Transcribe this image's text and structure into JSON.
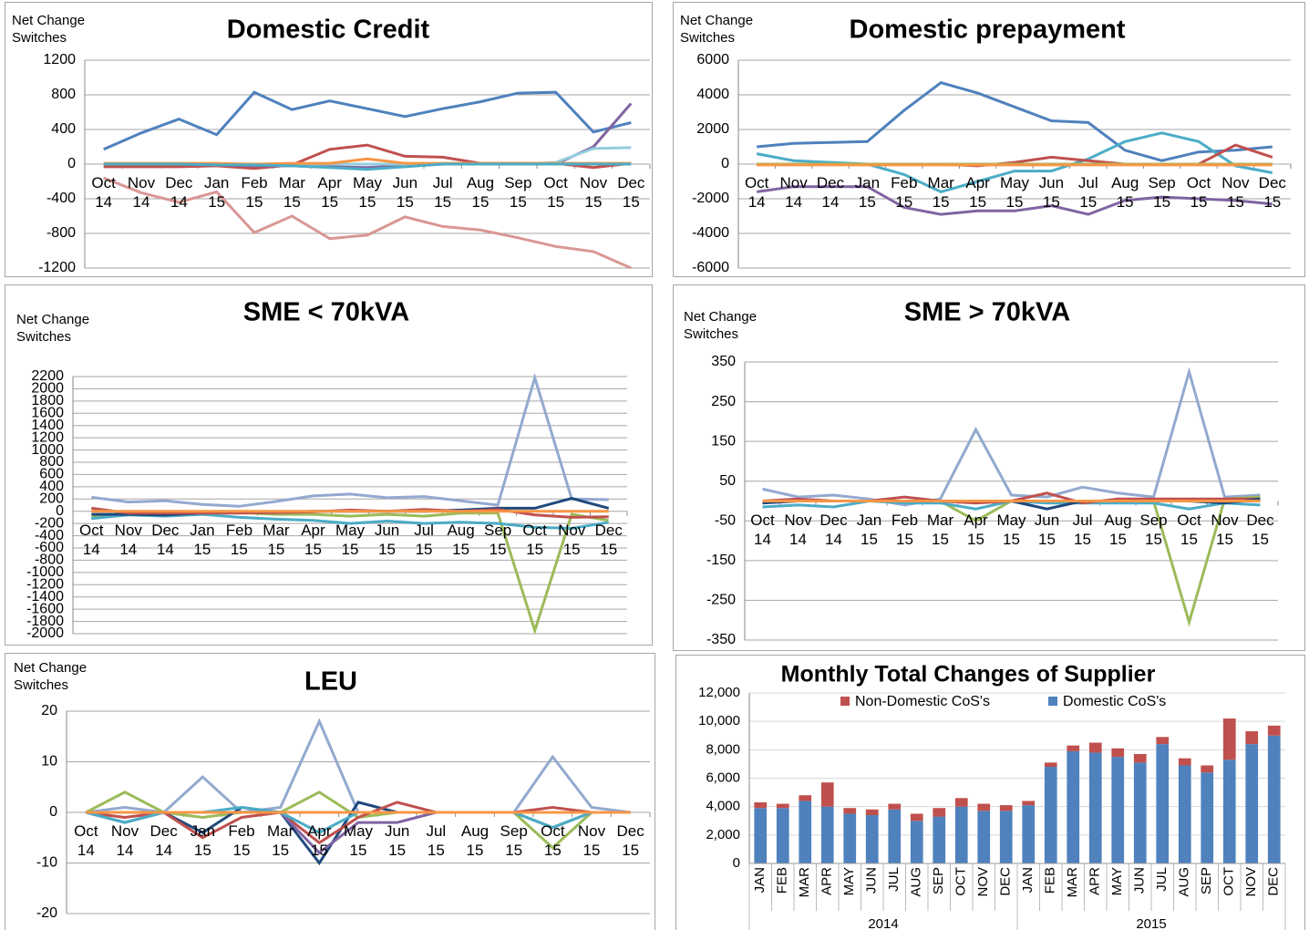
{
  "chart_data": [
    {
      "type": "line",
      "title": "Domestic Credit",
      "y_label": "Net Change Switches",
      "categories": [
        "Oct 14",
        "Nov 14",
        "Dec 14",
        "Jan 15",
        "Feb 15",
        "Mar 15",
        "Apr 15",
        "May 15",
        "Jun 15",
        "Jul 15",
        "Aug 15",
        "Sep 15",
        "Oct 15",
        "Nov 15",
        "Dec 15"
      ],
      "ylim": [
        -1200,
        1200
      ],
      "yticks": [
        -1200,
        -800,
        -400,
        0,
        400,
        800,
        1200
      ],
      "grid": true,
      "series": [
        {
          "color": "#4f81bd",
          "values": [
            170,
            360,
            520,
            340,
            830,
            630,
            730,
            640,
            550,
            640,
            720,
            820,
            830,
            370,
            480
          ]
        },
        {
          "color": "#d99694",
          "values": [
            -160,
            -330,
            -440,
            -320,
            -790,
            -600,
            -860,
            -820,
            -610,
            -720,
            -760,
            -850,
            -950,
            -1010,
            -1200
          ]
        },
        {
          "color": "#c0504d",
          "values": [
            -30,
            -30,
            -30,
            -20,
            -50,
            -10,
            170,
            220,
            90,
            80,
            10,
            10,
            10,
            -40,
            10
          ]
        },
        {
          "color": "#8064a2",
          "values": [
            0,
            0,
            0,
            -10,
            -20,
            -20,
            -30,
            -40,
            -20,
            0,
            0,
            0,
            0,
            200,
            700
          ]
        },
        {
          "color": "#93cddd",
          "values": [
            0,
            0,
            0,
            0,
            0,
            0,
            0,
            0,
            0,
            0,
            0,
            0,
            20,
            180,
            190
          ]
        },
        {
          "color": "#f79646",
          "values": [
            10,
            10,
            10,
            10,
            0,
            10,
            10,
            60,
            10,
            10,
            10,
            10,
            10,
            10,
            10
          ]
        },
        {
          "color": "#4bacc6",
          "values": [
            0,
            0,
            0,
            -10,
            -10,
            -20,
            -40,
            -60,
            -30,
            0,
            0,
            0,
            0,
            0,
            0
          ]
        }
      ]
    },
    {
      "type": "line",
      "title": "Domestic prepayment",
      "y_label": "Net Change Switches",
      "categories": [
        "Oct 14",
        "Nov 14",
        "Dec 14",
        "Jan 15",
        "Feb 15",
        "Mar 15",
        "Apr 15",
        "May 15",
        "Jun 15",
        "Jul 15",
        "Aug 15",
        "Sep 15",
        "Oct 15",
        "Nov 15",
        "Dec 15"
      ],
      "ylim": [
        -6000,
        6000
      ],
      "yticks": [
        -6000,
        -4000,
        -2000,
        0,
        2000,
        4000,
        6000
      ],
      "grid": true,
      "series": [
        {
          "color": "#4f81bd",
          "values": [
            1000,
            1200,
            1250,
            1300,
            3100,
            4700,
            4100,
            3300,
            2500,
            2400,
            800,
            200,
            700,
            800,
            1000
          ]
        },
        {
          "color": "#4bacc6",
          "values": [
            600,
            200,
            100,
            0,
            -600,
            -1600,
            -1000,
            -400,
            -400,
            300,
            1300,
            1800,
            1300,
            -100,
            -500
          ]
        },
        {
          "color": "#8064a2",
          "values": [
            -1600,
            -1300,
            -1300,
            -1300,
            -2500,
            -2900,
            -2700,
            -2700,
            -2400,
            -2900,
            -2100,
            -1900,
            -2000,
            -2100,
            -2300
          ]
        },
        {
          "color": "#c0504d",
          "values": [
            0,
            0,
            0,
            0,
            0,
            0,
            -100,
            100,
            400,
            200,
            0,
            0,
            0,
            1100,
            400
          ]
        },
        {
          "color": "#9bbb59",
          "values": [
            0,
            0,
            0,
            0,
            0,
            0,
            0,
            0,
            0,
            0,
            0,
            0,
            0,
            0,
            0
          ]
        },
        {
          "color": "#f79646",
          "values": [
            -50,
            -50,
            -50,
            -50,
            -50,
            -50,
            -50,
            -50,
            -50,
            -50,
            -50,
            -50,
            -50,
            -50,
            -50
          ]
        }
      ]
    },
    {
      "type": "line",
      "title": "SME < 70kVA",
      "y_label": "Net Change Switches",
      "categories": [
        "Oct 14",
        "Nov 14",
        "Dec 14",
        "Jan 15",
        "Feb 15",
        "Mar 15",
        "Apr 15",
        "May 15",
        "Jun 15",
        "Jul 15",
        "Aug 15",
        "Sep 15",
        "Oct 15",
        "Nov 15",
        "Dec 15"
      ],
      "ylim": [
        -2000,
        2200
      ],
      "yticks": [
        -2000,
        -1800,
        -1600,
        -1400,
        -1200,
        -1000,
        -800,
        -600,
        -400,
        -200,
        0,
        200,
        400,
        600,
        800,
        1000,
        1200,
        1400,
        1600,
        1800,
        2000,
        2200
      ],
      "grid": true,
      "series": [
        {
          "color": "#93a9cf",
          "values": [
            230,
            150,
            170,
            110,
            80,
            160,
            250,
            280,
            220,
            240,
            170,
            100,
            2180,
            200,
            190
          ]
        },
        {
          "color": "#9bbb59",
          "values": [
            -100,
            -30,
            -30,
            -20,
            -20,
            -50,
            -50,
            -80,
            -50,
            -80,
            -30,
            -30,
            -1950,
            -50,
            -150
          ]
        },
        {
          "color": "#4bacc6",
          "values": [
            -120,
            -60,
            -80,
            -50,
            -100,
            -130,
            -150,
            -200,
            -160,
            -200,
            -180,
            -200,
            -260,
            -280,
            -180
          ]
        },
        {
          "color": "#1f497d",
          "values": [
            -50,
            -50,
            -60,
            -30,
            -20,
            -20,
            0,
            0,
            0,
            0,
            20,
            50,
            50,
            210,
            50
          ]
        },
        {
          "color": "#c0504d",
          "values": [
            50,
            -30,
            -30,
            -30,
            -30,
            -20,
            -10,
            20,
            0,
            30,
            0,
            30,
            -60,
            -100,
            -90
          ]
        },
        {
          "color": "#f79646",
          "values": [
            0,
            0,
            0,
            0,
            0,
            0,
            0,
            0,
            0,
            0,
            0,
            0,
            0,
            0,
            0
          ]
        }
      ]
    },
    {
      "type": "line",
      "title": "SME > 70kVA",
      "y_label": "Net Change Switches",
      "categories": [
        "Oct 14",
        "Nov 14",
        "Dec 14",
        "Jan 15",
        "Feb 15",
        "Mar 15",
        "Apr 15",
        "May 15",
        "Jun 15",
        "Jul 15",
        "Aug 15",
        "Sep 15",
        "Oct 15",
        "Nov 15",
        "Dec 15"
      ],
      "ylim": [
        -350,
        350
      ],
      "yticks": [
        -350,
        -250,
        -150,
        -50,
        50,
        150,
        250,
        350
      ],
      "grid": true,
      "series": [
        {
          "color": "#93a9cf",
          "values": [
            30,
            10,
            15,
            5,
            -10,
            5,
            180,
            15,
            10,
            35,
            20,
            10,
            325,
            10,
            15
          ]
        },
        {
          "color": "#9bbb59",
          "values": [
            0,
            0,
            0,
            0,
            0,
            0,
            -50,
            0,
            0,
            -5,
            0,
            0,
            -305,
            5,
            10
          ]
        },
        {
          "color": "#4bacc6",
          "values": [
            -15,
            -10,
            -15,
            0,
            -5,
            -5,
            -20,
            0,
            -5,
            -5,
            -5,
            -5,
            -20,
            -5,
            -10
          ]
        },
        {
          "color": "#c0504d",
          "values": [
            0,
            5,
            0,
            0,
            10,
            0,
            -5,
            0,
            20,
            -5,
            5,
            5,
            5,
            5,
            5
          ]
        },
        {
          "color": "#1f497d",
          "values": [
            -5,
            0,
            0,
            0,
            0,
            0,
            0,
            0,
            -20,
            0,
            0,
            0,
            0,
            -5,
            5
          ]
        },
        {
          "color": "#f79646",
          "values": [
            0,
            0,
            0,
            0,
            0,
            0,
            0,
            0,
            0,
            0,
            0,
            0,
            0,
            0,
            0
          ]
        }
      ]
    },
    {
      "type": "line",
      "title": "LEU",
      "y_label": "Net Change Switches",
      "categories": [
        "Oct 14",
        "Nov 14",
        "Dec 14",
        "Jan 15",
        "Feb 15",
        "Mar 15",
        "Apr 15",
        "May 15",
        "Jun 15",
        "Jul 15",
        "Aug 15",
        "Sep 15",
        "Oct 15",
        "Nov 15",
        "Dec 15"
      ],
      "ylim": [
        -20,
        20
      ],
      "yticks": [
        -20,
        -10,
        0,
        10,
        20
      ],
      "grid": true,
      "series": [
        {
          "color": "#93a9cf",
          "values": [
            0,
            1,
            0,
            7,
            0,
            1,
            18,
            0,
            0,
            0,
            0,
            0,
            11,
            1,
            0
          ]
        },
        {
          "color": "#9bbb59",
          "values": [
            0,
            4,
            0,
            -1,
            0,
            0,
            4,
            -1,
            0,
            0,
            0,
            0,
            -7,
            0,
            0
          ]
        },
        {
          "color": "#1f497d",
          "values": [
            0,
            -2,
            0,
            -4,
            1,
            0,
            -10,
            2,
            0,
            0,
            0,
            0,
            -3,
            0,
            0
          ]
        },
        {
          "color": "#c0504d",
          "values": [
            0,
            -1,
            0,
            -5,
            -1,
            0,
            -6,
            -1,
            2,
            0,
            0,
            0,
            1,
            0,
            0
          ]
        },
        {
          "color": "#8064a2",
          "values": [
            0,
            0,
            0,
            0,
            0,
            0,
            -8,
            -2,
            -2,
            0,
            0,
            0,
            0,
            0,
            0
          ]
        },
        {
          "color": "#4bacc6",
          "values": [
            0,
            -2,
            0,
            0,
            1,
            0,
            -4,
            0,
            0,
            0,
            0,
            0,
            -3,
            0,
            0
          ]
        },
        {
          "color": "#f79646",
          "values": [
            0,
            0,
            0,
            0,
            0,
            0,
            0,
            0,
            0,
            0,
            0,
            0,
            0,
            0,
            0
          ]
        }
      ]
    },
    {
      "type": "bar",
      "stacked": true,
      "title": "Monthly Total Changes of Supplier",
      "categories": [
        "JAN",
        "FEB",
        "MAR",
        "APR",
        "MAY",
        "JUN",
        "JUL",
        "AUG",
        "SEP",
        "OCT",
        "NOV",
        "DEC",
        "JAN",
        "FEB",
        "MAR",
        "APR",
        "MAY",
        "JUN",
        "JUL",
        "AUG",
        "SEP",
        "OCT",
        "NOV",
        "DEC"
      ],
      "groups": [
        "2014",
        "2015"
      ],
      "ylim": [
        0,
        12000
      ],
      "yticks": [
        0,
        {
          "value": 2000,
          "label": "2,000"
        },
        {
          "value": 4000,
          "label": "4,000"
        },
        {
          "value": 6000,
          "label": "6,000"
        },
        {
          "value": 8000,
          "label": "8,000"
        },
        {
          "value": 10000,
          "label": "10,000"
        },
        {
          "value": 12000,
          "label": "12,000"
        }
      ],
      "grid": true,
      "series": [
        {
          "name": "Non-Domestic CoS's",
          "color": "#c0504d",
          "values": [
            400,
            300,
            400,
            1700,
            400,
            400,
            400,
            500,
            600,
            600,
            500,
            400,
            300,
            300,
            400,
            700,
            600,
            600,
            500,
            500,
            500,
            2900,
            900,
            700
          ]
        },
        {
          "name": "Domestic CoS's",
          "color": "#4f81bd",
          "values": [
            3900,
            3900,
            4400,
            4000,
            3500,
            3400,
            3800,
            3000,
            3300,
            4000,
            3700,
            3700,
            4100,
            6800,
            7900,
            7800,
            7500,
            7100,
            8400,
            6900,
            6400,
            7300,
            8400,
            9000
          ]
        }
      ]
    }
  ]
}
